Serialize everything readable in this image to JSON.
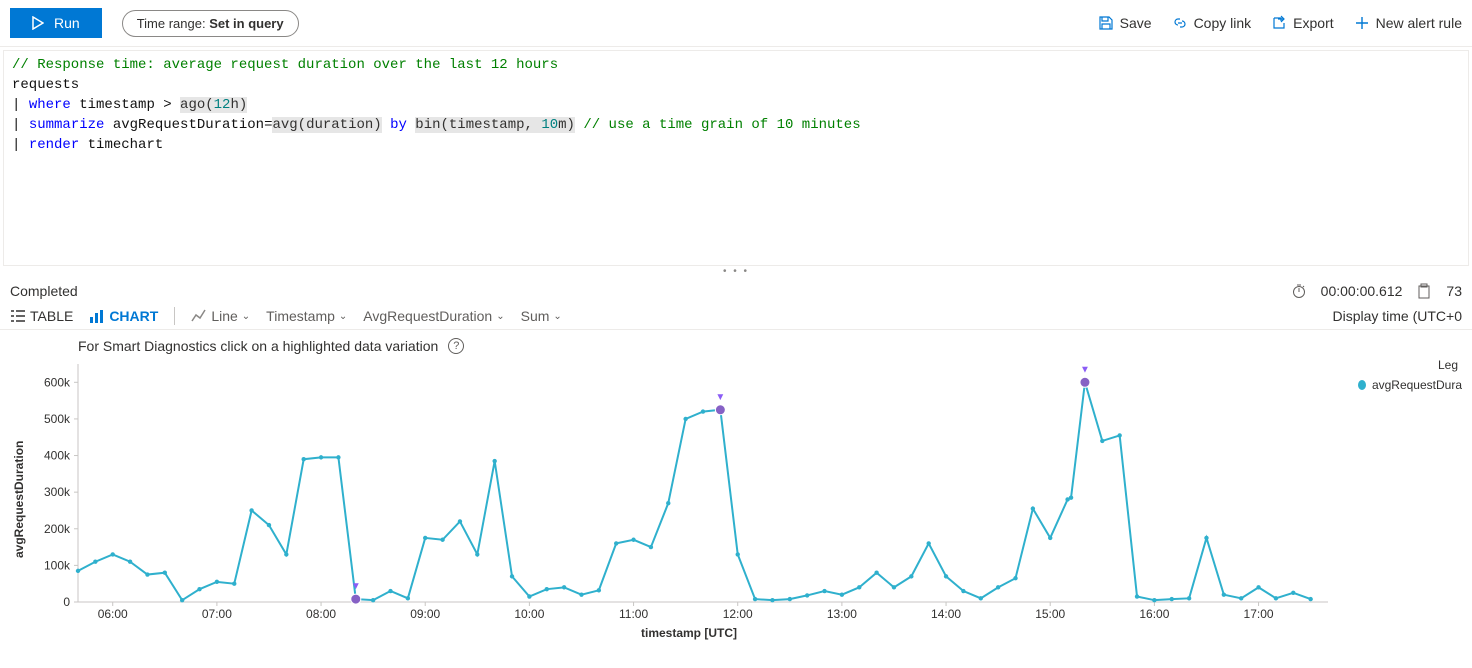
{
  "toolbar": {
    "run_label": "Run",
    "time_range_prefix": "Time range: ",
    "time_range_value": "Set in query",
    "save_label": "Save",
    "copylink_label": "Copy link",
    "export_label": "Export",
    "new_alert_label": "New alert rule"
  },
  "editor": {
    "line1_comment": "// Response time: average request duration over the last 12 hours",
    "line2": "requests",
    "line3_pipe": "| ",
    "line3_kw": "where",
    "line3_rest": " timestamp > ",
    "line3_func": "ago(",
    "line3_num": "12",
    "line3_unit": "h)",
    "line4_pipe": "| ",
    "line4_kw": "summarize",
    "line4_a": " avgRequestDuration=",
    "line4_func": "avg(duration)",
    "line4_by": " by ",
    "line4_bin": "bin(timestamp, ",
    "line4_num": "10",
    "line4_unit": "m)",
    "line4_comment": " // use a time grain of 10 minutes",
    "line5_pipe": "| ",
    "line5_kw": "render",
    "line5_rest": " timechart"
  },
  "status": {
    "text": "Completed",
    "duration": "00:00:00.612",
    "rows": "73"
  },
  "tabs": {
    "table": "TABLE",
    "chart": "CHART",
    "viztype": "Line",
    "xfield": "Timestamp",
    "yfield": "AvgRequestDuration",
    "agg": "Sum",
    "display_time": "Display time (UTC+0"
  },
  "chart": {
    "hint": "For Smart Diagnostics click on a highlighted data variation",
    "legend_title": "Leg",
    "legend_series": "avgRequestDura",
    "ylabel": "avgRequestDuration",
    "xlabel": "timestamp [UTC]",
    "series_color": "#2fb0cd",
    "highlight_color": "#8661c5",
    "y_ticks": [
      0,
      100,
      200,
      300,
      400,
      500,
      600
    ],
    "y_tick_labels": [
      "0",
      "100k",
      "200k",
      "300k",
      "400k",
      "500k",
      "600k"
    ],
    "y_max": 650,
    "x_tick_hours": [
      6,
      7,
      8,
      9,
      10,
      11,
      12,
      13,
      14,
      15,
      16,
      17
    ],
    "x_tick_labels": [
      "06:00",
      "07:00",
      "08:00",
      "09:00",
      "10:00",
      "11:00",
      "12:00",
      "13:00",
      "14:00",
      "15:00",
      "16:00",
      "17:00"
    ],
    "x_start_min": 340,
    "x_end_min": 1060,
    "data": [
      [
        340,
        85
      ],
      [
        350,
        110
      ],
      [
        360,
        130
      ],
      [
        370,
        110
      ],
      [
        380,
        75
      ],
      [
        390,
        80
      ],
      [
        400,
        5
      ],
      [
        410,
        35
      ],
      [
        420,
        55
      ],
      [
        430,
        50
      ],
      [
        440,
        250
      ],
      [
        450,
        210
      ],
      [
        460,
        130
      ],
      [
        470,
        390
      ],
      [
        480,
        395
      ],
      [
        490,
        395
      ],
      [
        500,
        8
      ],
      [
        510,
        5
      ],
      [
        520,
        30
      ],
      [
        530,
        10
      ],
      [
        540,
        175
      ],
      [
        550,
        170
      ],
      [
        560,
        220
      ],
      [
        570,
        130
      ],
      [
        580,
        385
      ],
      [
        590,
        70
      ],
      [
        600,
        15
      ],
      [
        610,
        35
      ],
      [
        620,
        40
      ],
      [
        630,
        20
      ],
      [
        640,
        32
      ],
      [
        650,
        160
      ],
      [
        660,
        170
      ],
      [
        670,
        150
      ],
      [
        680,
        270
      ],
      [
        690,
        500
      ],
      [
        700,
        520
      ],
      [
        710,
        525
      ],
      [
        720,
        130
      ],
      [
        730,
        8
      ],
      [
        740,
        5
      ],
      [
        750,
        8
      ],
      [
        760,
        18
      ],
      [
        770,
        30
      ],
      [
        780,
        20
      ],
      [
        790,
        40
      ],
      [
        800,
        80
      ],
      [
        810,
        40
      ],
      [
        820,
        70
      ],
      [
        830,
        160
      ],
      [
        840,
        70
      ],
      [
        850,
        30
      ],
      [
        860,
        10
      ],
      [
        870,
        40
      ],
      [
        880,
        65
      ],
      [
        890,
        255
      ],
      [
        900,
        175
      ],
      [
        910,
        280
      ],
      [
        912,
        285
      ],
      [
        920,
        600
      ],
      [
        930,
        440
      ],
      [
        940,
        455
      ],
      [
        950,
        15
      ],
      [
        960,
        5
      ],
      [
        970,
        8
      ],
      [
        980,
        10
      ],
      [
        990,
        175
      ],
      [
        1000,
        20
      ],
      [
        1010,
        10
      ],
      [
        1020,
        40
      ],
      [
        1030,
        10
      ],
      [
        1040,
        25
      ],
      [
        1050,
        8
      ]
    ],
    "highlights": [
      [
        500,
        8
      ],
      [
        710,
        525
      ],
      [
        920,
        600
      ]
    ]
  }
}
